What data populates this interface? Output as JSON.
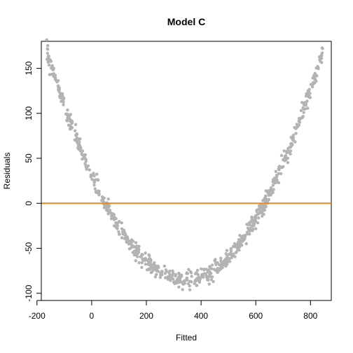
{
  "chart_data": {
    "type": "scatter",
    "title": "Model C",
    "xlabel": "Fitted",
    "ylabel": "Residuals",
    "xlim": [
      -184,
      876
    ],
    "ylim": [
      -108,
      180
    ],
    "xticks": [
      -200,
      0,
      200,
      400,
      600,
      800
    ],
    "yticks": [
      -100,
      -50,
      0,
      50,
      100,
      150
    ],
    "grid": false,
    "point_color": "#b3b3b3",
    "reference_line": {
      "y": 0,
      "color": "#e8892b"
    },
    "curve": {
      "vertex_x": 340,
      "vertex_y": -85,
      "curvature": 0.001,
      "noise_sd": 4.5,
      "x_min": -165,
      "x_max": 845,
      "count": 800
    }
  }
}
